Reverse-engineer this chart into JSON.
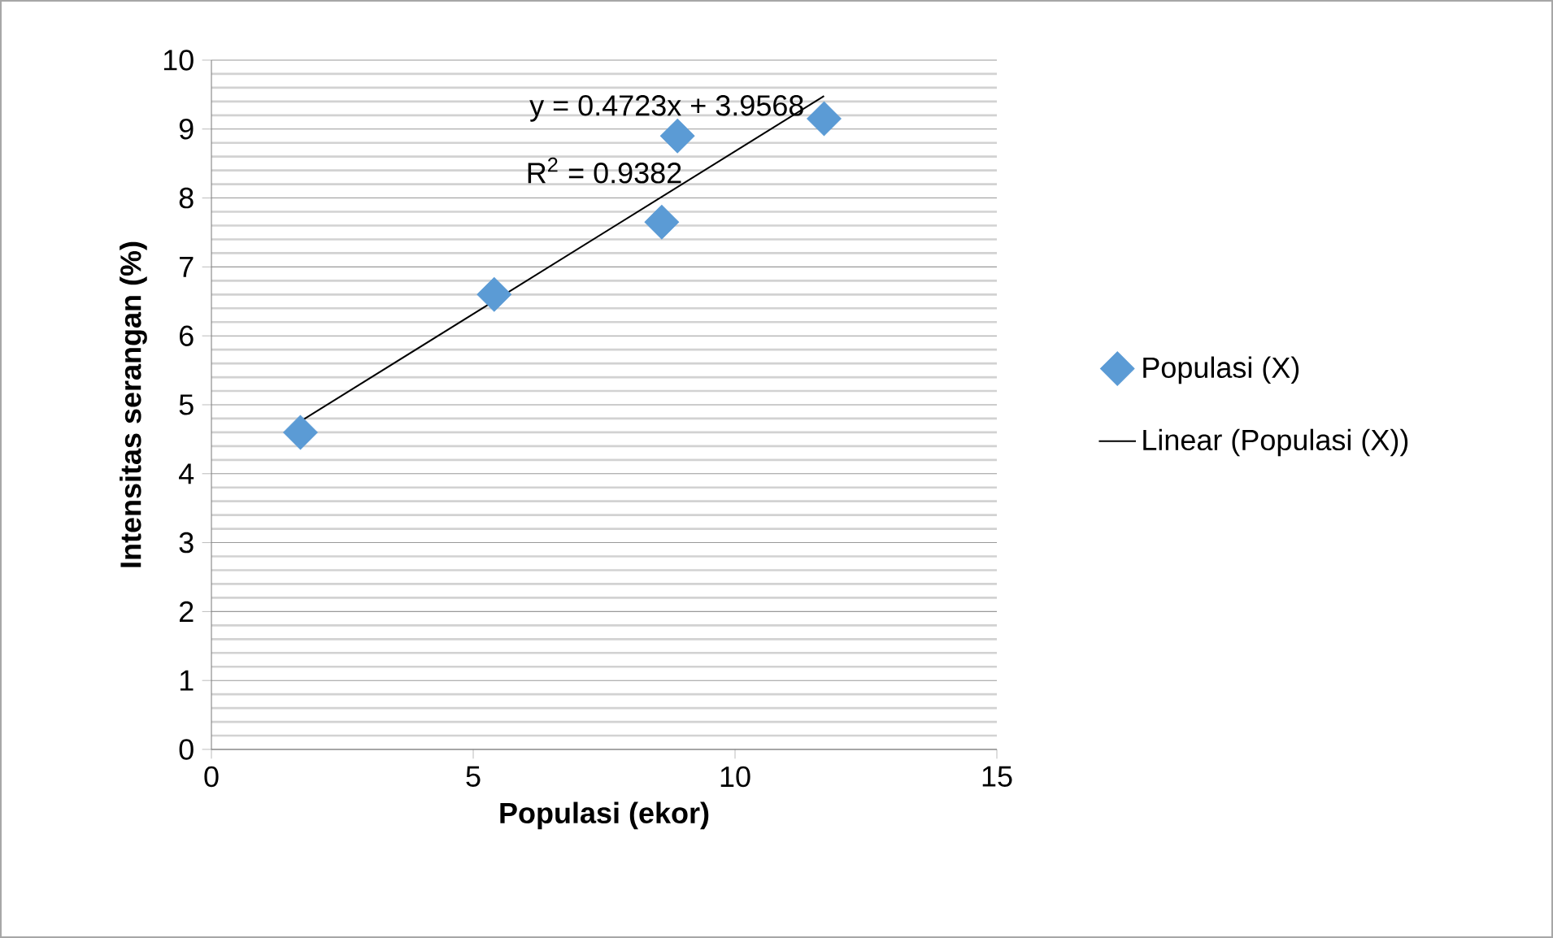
{
  "chart_data": {
    "type": "scatter",
    "xlabel": "Populasi (ekor)",
    "ylabel": "Intensitas serangan (%)",
    "series": [
      {
        "name": "Populasi (X)",
        "color": "#5b9bd5",
        "marker": "diamond",
        "x": [
          1.7,
          5.4,
          8.6,
          8.9,
          11.7
        ],
        "values": [
          4.6,
          6.6,
          7.65,
          8.9,
          9.15
        ]
      },
      {
        "name": "Linear (Populasi (X))",
        "type": "line",
        "color": "#000000",
        "marker": "none",
        "line_style": "solid",
        "x": [
          1.7,
          11.7
        ],
        "values": [
          4.76,
          9.48
        ]
      }
    ],
    "annotations": [
      "y = 0.4723x + 3.9568",
      "R$^{2}$ = 0.9382"
    ],
    "xlim": [
      0,
      15
    ],
    "xticks": [
      0,
      5,
      10,
      15
    ],
    "ylim": [
      0,
      10
    ],
    "yticks": [
      0,
      1,
      2,
      3,
      4,
      5,
      6,
      7,
      8,
      9,
      10
    ],
    "grid": "y",
    "legend": "right"
  }
}
